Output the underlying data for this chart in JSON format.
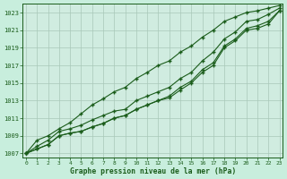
{
  "x": [
    0,
    1,
    2,
    3,
    4,
    5,
    6,
    7,
    8,
    9,
    10,
    11,
    12,
    13,
    14,
    15,
    16,
    17,
    18,
    19,
    20,
    21,
    22,
    23
  ],
  "line1": [
    1007.0,
    1007.5,
    1008.0,
    1009.0,
    1009.3,
    1009.5,
    1010.0,
    1010.4,
    1011.0,
    1011.3,
    1012.0,
    1012.5,
    1013.0,
    1013.3,
    1014.2,
    1015.0,
    1016.2,
    1017.0,
    1019.0,
    1019.8,
    1021.0,
    1021.2,
    1021.7,
    1023.2
  ],
  "line2": [
    1007.0,
    1007.5,
    1008.0,
    1009.0,
    1009.3,
    1009.5,
    1010.0,
    1010.4,
    1011.0,
    1011.3,
    1012.0,
    1012.5,
    1013.0,
    1013.5,
    1014.5,
    1015.2,
    1016.5,
    1017.3,
    1019.2,
    1020.0,
    1021.2,
    1021.5,
    1022.0,
    1023.2
  ],
  "line3": [
    1007.0,
    1007.8,
    1008.5,
    1009.5,
    1009.8,
    1010.2,
    1010.8,
    1011.3,
    1011.8,
    1012.0,
    1013.0,
    1013.5,
    1014.0,
    1014.5,
    1015.5,
    1016.2,
    1017.5,
    1018.5,
    1020.0,
    1020.8,
    1022.0,
    1022.2,
    1022.8,
    1023.5
  ],
  "line4": [
    1007.0,
    1008.5,
    1009.0,
    1009.8,
    1010.5,
    1011.5,
    1012.5,
    1013.2,
    1014.0,
    1014.5,
    1015.5,
    1016.2,
    1017.0,
    1017.5,
    1018.5,
    1019.2,
    1020.2,
    1021.0,
    1022.0,
    1022.5,
    1023.0,
    1023.2,
    1023.5,
    1023.8
  ],
  "line_color": "#1a5c1a",
  "bg_color": "#c8eedd",
  "grid_color": "#a8c8b8",
  "plot_bg": "#d0ece0",
  "ylim_min": 1006.5,
  "ylim_max": 1024.0,
  "yticks": [
    1007,
    1009,
    1011,
    1013,
    1015,
    1017,
    1019,
    1021,
    1023
  ],
  "xticks": [
    0,
    1,
    2,
    3,
    4,
    5,
    6,
    7,
    8,
    9,
    10,
    11,
    12,
    13,
    14,
    15,
    16,
    17,
    18,
    19,
    20,
    21,
    22,
    23
  ],
  "xlabel": "Graphe pression niveau de la mer (hPa)",
  "marker": "+",
  "markersize": 3.5,
  "markeredgewidth": 1.0,
  "linewidth": 0.8
}
